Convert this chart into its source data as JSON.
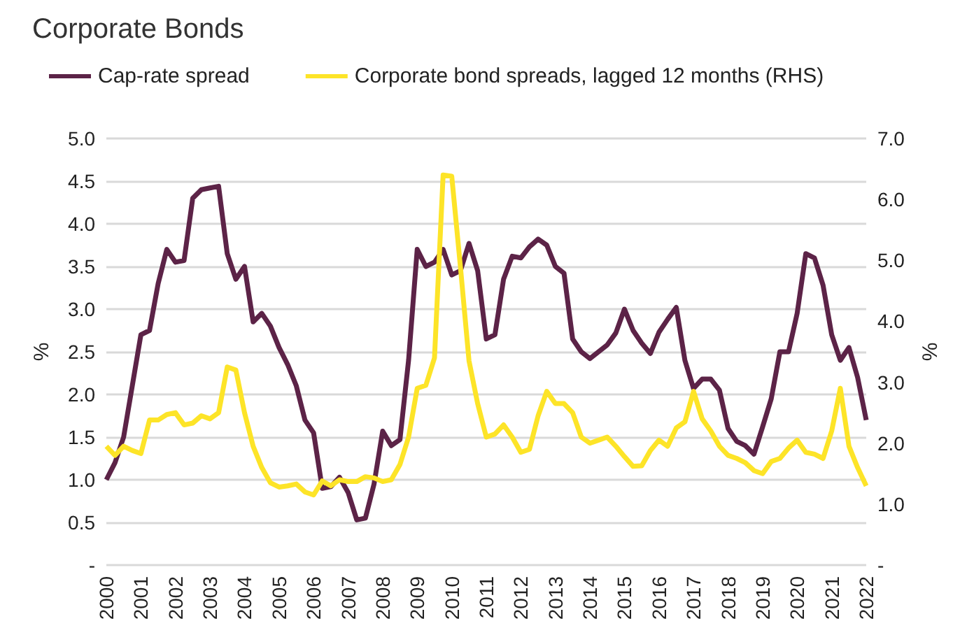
{
  "chart_data": {
    "type": "line",
    "title": "Corporate Bonds",
    "ylabel": "%",
    "y2label": "%",
    "legend": "top left",
    "grid": "y",
    "x": [
      2000,
      2000.25,
      2000.5,
      2000.75,
      2001,
      2001.25,
      2001.5,
      2001.75,
      2002,
      2002.25,
      2002.5,
      2002.75,
      2003,
      2003.25,
      2003.5,
      2003.75,
      2004,
      2004.25,
      2004.5,
      2004.75,
      2005,
      2005.25,
      2005.5,
      2005.75,
      2006,
      2006.25,
      2006.5,
      2006.75,
      2007,
      2007.25,
      2007.5,
      2007.75,
      2008,
      2008.25,
      2008.5,
      2008.75,
      2009,
      2009.25,
      2009.5,
      2009.75,
      2010,
      2010.25,
      2010.5,
      2010.75,
      2011,
      2011.25,
      2011.5,
      2011.75,
      2012,
      2012.25,
      2012.5,
      2012.75,
      2013,
      2013.25,
      2013.5,
      2013.75,
      2014,
      2014.25,
      2014.5,
      2014.75,
      2015,
      2015.25,
      2015.5,
      2015.75,
      2016,
      2016.25,
      2016.5,
      2016.75,
      2017,
      2017.25,
      2017.5,
      2017.75,
      2018,
      2018.25,
      2018.5,
      2018.75,
      2019,
      2019.25,
      2019.5,
      2019.75,
      2020,
      2020.25,
      2020.5,
      2020.75,
      2021,
      2021.25,
      2021.5,
      2021.75,
      2022
    ],
    "series": [
      {
        "name": "Cap-rate spread",
        "color": "#5c2347",
        "values": [
          1.0,
          1.2,
          1.5,
          2.1,
          2.7,
          2.75,
          3.3,
          3.7,
          3.55,
          3.57,
          4.3,
          4.4,
          4.42,
          4.44,
          3.65,
          3.35,
          3.5,
          2.85,
          2.95,
          2.8,
          2.55,
          2.35,
          2.1,
          1.7,
          1.55,
          0.9,
          0.92,
          1.03,
          0.85,
          0.53,
          0.55,
          0.95,
          1.57,
          1.4,
          1.47,
          2.4,
          3.7,
          3.5,
          3.55,
          3.7,
          3.4,
          3.45,
          3.77,
          3.45,
          2.65,
          2.7,
          3.35,
          3.62,
          3.6,
          3.73,
          3.82,
          3.75,
          3.5,
          3.42,
          2.65,
          2.5,
          2.42,
          2.5,
          2.58,
          2.72,
          3.0,
          2.75,
          2.6,
          2.48,
          2.73,
          2.88,
          3.02,
          2.4,
          2.07,
          2.18,
          2.18,
          2.05,
          1.6,
          1.45,
          1.4,
          1.3,
          1.62,
          1.95,
          2.5,
          2.5,
          2.95,
          3.65,
          3.6,
          3.28,
          2.7,
          2.4,
          2.55,
          2.2,
          1.7
        ]
      },
      {
        "name": "Corporate bond spreads, lagged 12 months (RHS)",
        "color": "#fde428",
        "axis": "y2",
        "values": [
          1.95,
          1.8,
          1.95,
          1.88,
          1.83,
          2.38,
          2.38,
          2.47,
          2.5,
          2.3,
          2.33,
          2.45,
          2.4,
          2.5,
          3.25,
          3.2,
          2.5,
          1.95,
          1.6,
          1.35,
          1.28,
          1.3,
          1.33,
          1.2,
          1.15,
          1.38,
          1.3,
          1.4,
          1.37,
          1.37,
          1.45,
          1.43,
          1.37,
          1.4,
          1.65,
          2.1,
          2.9,
          2.95,
          3.4,
          6.4,
          6.38,
          4.9,
          3.35,
          2.65,
          2.1,
          2.15,
          2.3,
          2.1,
          1.85,
          1.9,
          2.45,
          2.85,
          2.65,
          2.65,
          2.5,
          2.1,
          2.0,
          2.05,
          2.1,
          1.95,
          1.78,
          1.62,
          1.63,
          1.88,
          2.05,
          1.95,
          2.25,
          2.35,
          2.85,
          2.4,
          2.2,
          1.95,
          1.8,
          1.75,
          1.68,
          1.55,
          1.5,
          1.7,
          1.75,
          1.92,
          2.05,
          1.85,
          1.82,
          1.75,
          2.2,
          2.9,
          1.95,
          1.6,
          1.3
        ]
      }
    ],
    "xlim": [
      2000,
      2022
    ],
    "xticks": [
      2000,
      2001,
      2002,
      2003,
      2004,
      2005,
      2006,
      2007,
      2008,
      2009,
      2010,
      2011,
      2012,
      2013,
      2014,
      2015,
      2016,
      2017,
      2018,
      2019,
      2020,
      2021,
      2022
    ],
    "ylim": [
      0,
      5
    ],
    "yticks": [
      {
        "value": 0,
        "label": "-"
      },
      {
        "value": 0.5,
        "label": "0.5"
      },
      {
        "value": 1,
        "label": "1.0"
      },
      {
        "value": 1.5,
        "label": "1.5"
      },
      {
        "value": 2,
        "label": "2.0"
      },
      {
        "value": 2.5,
        "label": "2.5"
      },
      {
        "value": 3,
        "label": "3.0"
      },
      {
        "value": 3.5,
        "label": "3.5"
      },
      {
        "value": 4,
        "label": "4.0"
      },
      {
        "value": 4.5,
        "label": "4.5"
      },
      {
        "value": 5,
        "label": "5.0"
      }
    ],
    "y2lim": [
      0,
      7
    ],
    "y2ticks": [
      {
        "value": 0,
        "label": "-"
      },
      {
        "value": 1,
        "label": "1.0"
      },
      {
        "value": 2,
        "label": "2.0"
      },
      {
        "value": 3,
        "label": "3.0"
      },
      {
        "value": 4,
        "label": "4.0"
      },
      {
        "value": 5,
        "label": "5.0"
      },
      {
        "value": 6,
        "label": "6.0"
      },
      {
        "value": 7,
        "label": "7.0"
      }
    ]
  }
}
